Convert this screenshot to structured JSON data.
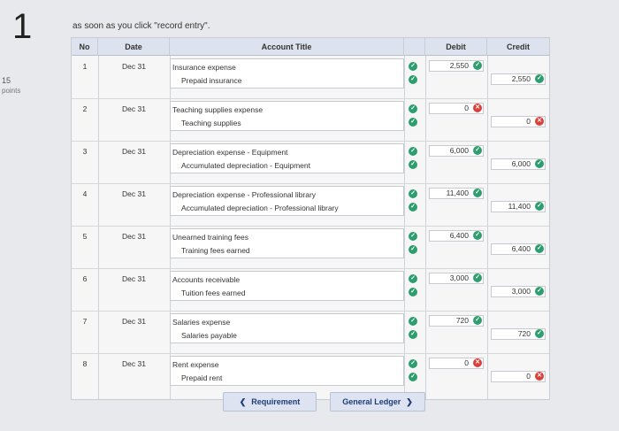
{
  "question": {
    "number": "1",
    "points": "15",
    "points_label": "points"
  },
  "instruction": "as soon as you click \"record entry\".",
  "table": {
    "headers": {
      "no": "No",
      "date": "Date",
      "account": "Account Title",
      "debit": "Debit",
      "credit": "Credit"
    },
    "rows": [
      {
        "no": "1",
        "date": "Dec 31",
        "debit_account": "Insurance expense",
        "credit_account": "Prepaid insurance",
        "debit": "2,550",
        "credit": "2,550",
        "debit_status": "correct",
        "credit_status": "correct"
      },
      {
        "no": "2",
        "date": "Dec 31",
        "debit_account": "Teaching supplies expense",
        "credit_account": "Teaching supplies",
        "debit": "0",
        "credit": "0",
        "debit_status": "incorrect",
        "credit_status": "incorrect"
      },
      {
        "no": "3",
        "date": "Dec 31",
        "debit_account": "Depreciation expense - Equipment",
        "credit_account": "Accumulated depreciation - Equipment",
        "debit": "6,000",
        "credit": "6,000",
        "debit_status": "correct",
        "credit_status": "correct"
      },
      {
        "no": "4",
        "date": "Dec 31",
        "debit_account": "Depreciation expense - Professional library",
        "credit_account": "Accumulated depreciation - Professional library",
        "debit": "11,400",
        "credit": "11,400",
        "debit_status": "correct",
        "credit_status": "correct"
      },
      {
        "no": "5",
        "date": "Dec 31",
        "debit_account": "Unearned training fees",
        "credit_account": "Training fees earned",
        "debit": "6,400",
        "credit": "6,400",
        "debit_status": "correct",
        "credit_status": "correct"
      },
      {
        "no": "6",
        "date": "Dec 31",
        "debit_account": "Accounts receivable",
        "credit_account": "Tuition fees earned",
        "debit": "3,000",
        "credit": "3,000",
        "debit_status": "correct",
        "credit_status": "correct"
      },
      {
        "no": "7",
        "date": "Dec 31",
        "debit_account": "Salaries expense",
        "credit_account": "Salaries payable",
        "debit": "720",
        "credit": "720",
        "debit_status": "correct",
        "credit_status": "correct"
      },
      {
        "no": "8",
        "date": "Dec 31",
        "debit_account": "Rent expense",
        "credit_account": "Prepaid rent",
        "debit": "0",
        "credit": "0",
        "debit_status": "incorrect",
        "credit_status": "incorrect"
      }
    ]
  },
  "buttons": {
    "prev_label": "Requirement",
    "next_label": "General Ledger"
  },
  "colors": {
    "correct": "#2f9e6e",
    "incorrect": "#d9423a",
    "header_bg": "#dde3ee"
  }
}
